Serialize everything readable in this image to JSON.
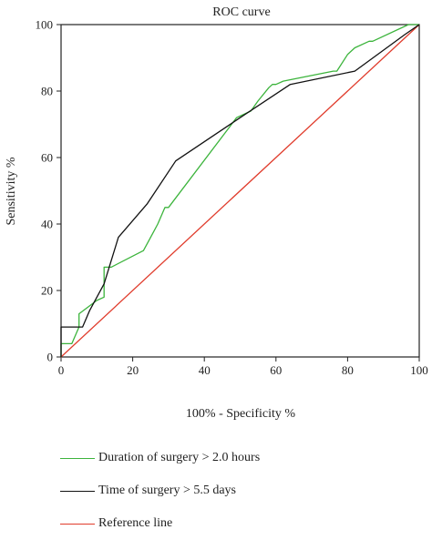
{
  "chart_data": {
    "type": "line",
    "title": "ROC curve",
    "xlabel": "100% - Specificity %",
    "ylabel": "Sensitivity %",
    "xlim": [
      0,
      100
    ],
    "ylim": [
      0,
      100
    ],
    "x_ticks": [
      0,
      20,
      40,
      60,
      80,
      100
    ],
    "y_ticks": [
      0,
      20,
      40,
      60,
      80,
      100
    ],
    "grid": false,
    "legend_position": "bottom",
    "series": [
      {
        "name": "Duration of surgery > 2.0 hours",
        "color": "#3cb43c",
        "x": [
          0,
          0,
          1,
          3,
          5,
          5,
          10,
          12,
          12,
          14,
          23,
          25,
          27,
          29,
          30,
          49,
          51,
          53,
          55,
          58,
          59,
          60,
          62,
          76,
          77,
          80,
          82,
          86,
          87,
          97,
          100
        ],
        "y": [
          0,
          4,
          4,
          4,
          9,
          13,
          17,
          18,
          27,
          27,
          32,
          36,
          40,
          45,
          45,
          72,
          73,
          74,
          77,
          81,
          82,
          82,
          83,
          86,
          86,
          91,
          93,
          95,
          95,
          100,
          100
        ]
      },
      {
        "name": "Time of surgery > 5.5 days",
        "color": "#111111",
        "x": [
          0,
          0,
          4,
          5,
          6,
          8,
          12,
          16,
          24,
          32,
          50,
          64,
          82,
          96,
          100
        ],
        "y": [
          0,
          9,
          9,
          9,
          9,
          14,
          22,
          36,
          46,
          59,
          72,
          82,
          86,
          97,
          100
        ]
      },
      {
        "name": "Reference line",
        "color": "#e03c2c",
        "x": [
          0,
          100
        ],
        "y": [
          0,
          100
        ]
      }
    ]
  }
}
